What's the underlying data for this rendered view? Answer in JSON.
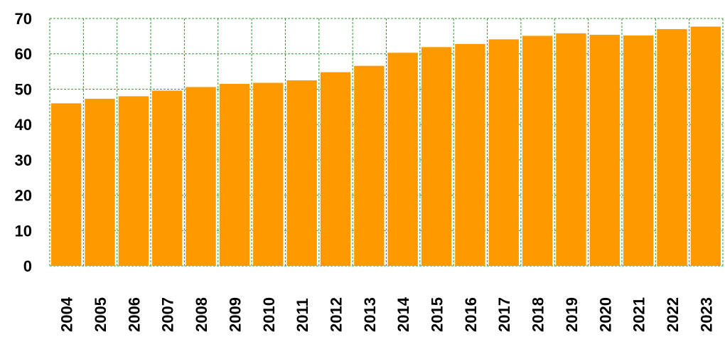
{
  "chart_data": {
    "type": "bar",
    "title": "",
    "xlabel": "",
    "ylabel": "",
    "categories": [
      "2004",
      "2005",
      "2006",
      "2007",
      "2008",
      "2009",
      "2010",
      "2011",
      "2012",
      "2013",
      "2014",
      "2015",
      "2016",
      "2017",
      "2018",
      "2019",
      "2020",
      "2021",
      "2022",
      "2023"
    ],
    "values": [
      46.0,
      47.3,
      48.0,
      49.6,
      50.6,
      51.5,
      51.8,
      52.5,
      54.8,
      56.6,
      60.3,
      61.9,
      62.8,
      64.1,
      65.1,
      65.8,
      65.4,
      65.2,
      67.0,
      67.7
    ],
    "ylim": [
      0,
      70
    ],
    "yticks": [
      "0",
      "10",
      "20",
      "30",
      "40",
      "50",
      "60",
      "70"
    ],
    "grid": true,
    "legend": "none",
    "colors": {
      "bar": "#FF9900",
      "grid": "#339933",
      "text": "#000000"
    }
  }
}
